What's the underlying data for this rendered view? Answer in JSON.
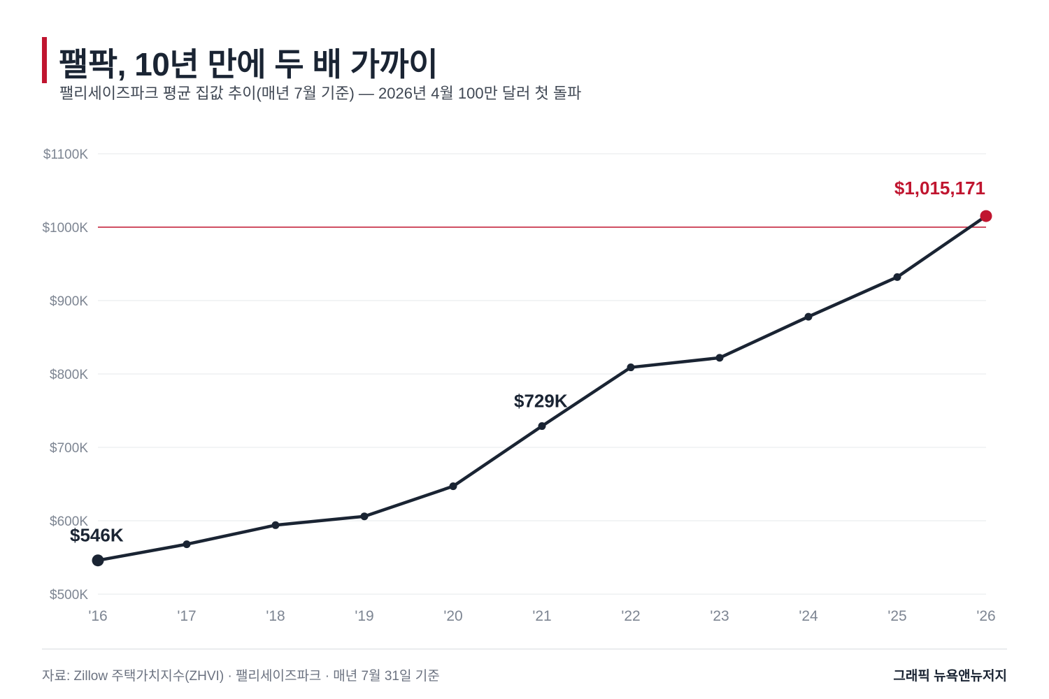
{
  "header": {
    "title": "팰팍, 10년 만에 두 배 가까이",
    "subtitle": "팰리세이즈파크 평균 집값 추이(매년 7월 기준) — 2026년 4월 100만 달러 첫 돌파"
  },
  "footer": {
    "source": "자료: Zillow 주택가치지수(ZHVI) · 팰리세이즈파크 · 매년 7월 31일 기준",
    "credit": "그래픽 뉴욕앤뉴저지"
  },
  "colors": {
    "line": "#1a2433",
    "accent": "#c0152f",
    "grid": "#e6e8eb",
    "tick": "#7d8592"
  },
  "chart_data": {
    "type": "line",
    "x": [
      "'16",
      "'17",
      "'18",
      "'19",
      "'20",
      "'21",
      "'22",
      "'23",
      "'24",
      "'25",
      "'26"
    ],
    "series": [
      {
        "values": [
          546000,
          568000,
          594000,
          606000,
          647000,
          729000,
          809000,
          822000,
          878000,
          932000,
          1015171
        ]
      }
    ],
    "ylim": [
      500000,
      1100000
    ],
    "yticks": [
      500000,
      600000,
      700000,
      800000,
      900000,
      1000000,
      1100000
    ],
    "ytick_labels": [
      "$500K",
      "$600K",
      "$700K",
      "$800K",
      "$900K",
      "$1000K",
      "$1100K"
    ],
    "reference_line": {
      "value": 1000000
    },
    "annotations": [
      {
        "index": 0,
        "text": "$546K"
      },
      {
        "index": 5,
        "text": "$729K"
      },
      {
        "index": 10,
        "text": "$1,015,171"
      }
    ],
    "grid": true,
    "xlabel": "",
    "ylabel": "",
    "title": ""
  }
}
